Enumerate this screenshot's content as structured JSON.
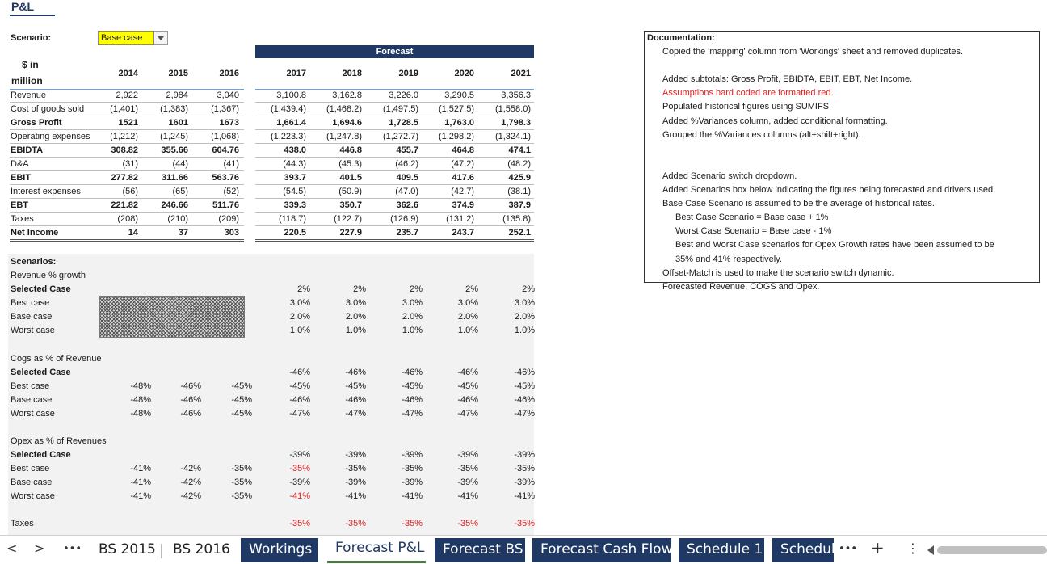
{
  "sheet": {
    "title": "P&L",
    "scenario_label": "Scenario:",
    "scenario_value": "Base case",
    "forecast_label": "Forecast",
    "units_label_line1": "$ in",
    "units_label_line2": "million",
    "years": [
      "2014",
      "2015",
      "2016",
      "2017",
      "2018",
      "2019",
      "2020",
      "2021"
    ]
  },
  "pl_rows": [
    {
      "label": "Revenue",
      "bold": false,
      "values": [
        "2,922",
        "2,984",
        "3,040",
        "3,100.8",
        "3,162.8",
        "3,226.0",
        "3,290.5",
        "3,356.3"
      ]
    },
    {
      "label": "Cost of goods sold",
      "bold": false,
      "values": [
        "(1,401)",
        "(1,383)",
        "(1,367)",
        "(1,439.4)",
        "(1,468.2)",
        "(1,497.5)",
        "(1,527.5)",
        "(1,558.0)"
      ]
    },
    {
      "label": "Gross Profit",
      "bold": true,
      "values": [
        "1521",
        "1601",
        "1673",
        "1,661.4",
        "1,694.6",
        "1,728.5",
        "1,763.0",
        "1,798.3"
      ]
    },
    {
      "label": "Operating expenses",
      "bold": false,
      "values": [
        "(1,212)",
        "(1,245)",
        "(1,068)",
        "(1,223.3)",
        "(1,247.8)",
        "(1,272.7)",
        "(1,298.2)",
        "(1,324.1)"
      ]
    },
    {
      "label": "EBIDTA",
      "bold": true,
      "values": [
        "308.82",
        "355.66",
        "604.76",
        "438.0",
        "446.8",
        "455.7",
        "464.8",
        "474.1"
      ]
    },
    {
      "label": "D&A",
      "bold": false,
      "values": [
        "(31)",
        "(44)",
        "(41)",
        "(44.3)",
        "(45.3)",
        "(46.2)",
        "(47.2)",
        "(48.2)"
      ]
    },
    {
      "label": "EBIT",
      "bold": true,
      "values": [
        "277.82",
        "311.66",
        "563.76",
        "393.7",
        "401.5",
        "409.5",
        "417.6",
        "425.9"
      ]
    },
    {
      "label": "Interest expenses",
      "bold": false,
      "values": [
        "(56)",
        "(65)",
        "(52)",
        "(54.5)",
        "(50.9)",
        "(47.0)",
        "(42.7)",
        "(38.1)"
      ]
    },
    {
      "label": "EBT",
      "bold": true,
      "values": [
        "221.82",
        "246.66",
        "511.76",
        "339.3",
        "350.7",
        "362.6",
        "374.9",
        "387.9"
      ]
    },
    {
      "label": "Taxes",
      "bold": false,
      "values": [
        "(208)",
        "(210)",
        "(209)",
        "(118.7)",
        "(122.7)",
        "(126.9)",
        "(131.2)",
        "(135.8)"
      ]
    },
    {
      "label": "Net Income",
      "bold": true,
      "values": [
        "14",
        "37",
        "303",
        "220.5",
        "227.9",
        "235.7",
        "243.7",
        "252.1"
      ]
    }
  ],
  "scenarios_title": "Scenarios:",
  "scenario_blocks": [
    {
      "title": "Revenue % growth",
      "rows": [
        {
          "label": "Selected Case",
          "bold": true,
          "hist": [
            "",
            "",
            ""
          ],
          "fc": [
            "2%",
            "2%",
            "2%",
            "2%",
            "2%"
          ]
        },
        {
          "label": "Best case",
          "bold": false,
          "hist": [
            "",
            "",
            ""
          ],
          "fc": [
            "3.0%",
            "3.0%",
            "3.0%",
            "3.0%",
            "3.0%"
          ]
        },
        {
          "label": "Base case",
          "bold": false,
          "hist": [
            "",
            "",
            ""
          ],
          "fc": [
            "2.0%",
            "2.0%",
            "2.0%",
            "2.0%",
            "2.0%"
          ]
        },
        {
          "label": "Worst case",
          "bold": false,
          "hist": [
            "",
            "",
            ""
          ],
          "fc": [
            "1.0%",
            "1.0%",
            "1.0%",
            "1.0%",
            "1.0%"
          ]
        }
      ]
    },
    {
      "title": "Cogs as % of Revenue",
      "rows": [
        {
          "label": "Selected Case",
          "bold": true,
          "hist": [
            "",
            "",
            ""
          ],
          "fc": [
            "-46%",
            "-46%",
            "-46%",
            "-46%",
            "-46%"
          ]
        },
        {
          "label": "Best case",
          "bold": false,
          "hist": [
            "-48%",
            "-46%",
            "-45%"
          ],
          "fc": [
            "-45%",
            "-45%",
            "-45%",
            "-45%",
            "-45%"
          ]
        },
        {
          "label": "Base case",
          "bold": false,
          "hist": [
            "-48%",
            "-46%",
            "-45%"
          ],
          "fc": [
            "-46%",
            "-46%",
            "-46%",
            "-46%",
            "-46%"
          ]
        },
        {
          "label": "Worst case",
          "bold": false,
          "hist": [
            "-48%",
            "-46%",
            "-45%"
          ],
          "fc": [
            "-47%",
            "-47%",
            "-47%",
            "-47%",
            "-47%"
          ]
        }
      ]
    },
    {
      "title": "Opex as % of Revenues",
      "rows": [
        {
          "label": "Selected Case",
          "bold": true,
          "hist": [
            "",
            "",
            ""
          ],
          "fc": [
            "-39%",
            "-39%",
            "-39%",
            "-39%",
            "-39%"
          ]
        },
        {
          "label": "Best case",
          "bold": false,
          "hist": [
            "-41%",
            "-42%",
            "-35%"
          ],
          "fc": [
            "-35%",
            "-35%",
            "-35%",
            "-35%",
            "-35%"
          ],
          "red_first": true
        },
        {
          "label": "Base case",
          "bold": false,
          "hist": [
            "-41%",
            "-42%",
            "-35%"
          ],
          "fc": [
            "-39%",
            "-39%",
            "-39%",
            "-39%",
            "-39%"
          ]
        },
        {
          "label": "Worst case",
          "bold": false,
          "hist": [
            "-41%",
            "-42%",
            "-35%"
          ],
          "fc": [
            "-41%",
            "-41%",
            "-41%",
            "-41%",
            "-41%"
          ],
          "red_first": true
        }
      ]
    }
  ],
  "taxes_row": {
    "label": "Taxes",
    "fc": [
      "-35%",
      "-35%",
      "-35%",
      "-35%",
      "-35%"
    ]
  },
  "documentation": {
    "title": "Documentation:",
    "lines": [
      {
        "text": "Copied the 'mapping' column from 'Workings' sheet and removed duplicates.",
        "indent": 1,
        "red": false
      },
      {
        "text": "",
        "indent": 1,
        "red": false
      },
      {
        "text": "Added subtotals: Gross Profit, EBIDTA, EBIT, EBT, Net Income.",
        "indent": 1,
        "red": false
      },
      {
        "text": "Assumptions hard coded are formatted red.",
        "indent": 1,
        "red": true
      },
      {
        "text": "Populated historical figures using SUMIFS.",
        "indent": 1,
        "red": false
      },
      {
        "text": "Added %Variances column, added conditional formatting.",
        "indent": 1,
        "red": false
      },
      {
        "text": "Grouped the %Variances columns (alt+shift+right).",
        "indent": 1,
        "red": false
      },
      {
        "text": "",
        "indent": 1,
        "red": false
      },
      {
        "text": "",
        "indent": 1,
        "red": false
      },
      {
        "text": "Added Scenario switch dropdown.",
        "indent": 1,
        "red": false
      },
      {
        "text": "Added Scenarios box below indicating the figures being forecasted and drivers used.",
        "indent": 1,
        "red": false
      },
      {
        "text": "Base Case Scenario is assumed to be the average of historical rates.",
        "indent": 1,
        "red": false
      },
      {
        "text": "Best Case Scenario = Base case + 1%",
        "indent": 2,
        "red": false
      },
      {
        "text": "Worst Case Scenario = Base case - 1%",
        "indent": 2,
        "red": false
      },
      {
        "text": "Best and Worst Case scenarios for Opex Growth rates  have been assumed to be",
        "indent": 2,
        "red": false
      },
      {
        "text": "35% and 41% respectively.",
        "indent": 2,
        "red": false
      },
      {
        "text": "Offset-Match is used to make the scenario switch dynamic.",
        "indent": 1,
        "red": false
      },
      {
        "text": "Forecasted Revenue, COGS and Opex.",
        "indent": 1,
        "red": false
      }
    ]
  },
  "tabs": {
    "prev": "<",
    "next": ">",
    "more_left": "•••",
    "items": [
      {
        "label": "BS 2015",
        "style": "plain"
      },
      {
        "label": "BS 2016",
        "style": "plain"
      },
      {
        "label": "Workings",
        "style": "blue"
      },
      {
        "label": "Forecast P&L",
        "style": "active"
      },
      {
        "label": "Forecast BS",
        "style": "blue"
      },
      {
        "label": "Forecast Cash Flow",
        "style": "blue"
      },
      {
        "label": "Schedule 1",
        "style": "blue"
      },
      {
        "label": "Schedul",
        "style": "blue"
      }
    ],
    "more_right": "•••",
    "add": "+",
    "menu": "⋮"
  },
  "colors": {
    "accent": "#1f3864",
    "highlight": "#ffff00",
    "red": "#e02020",
    "panel": "#f2f2f2"
  }
}
